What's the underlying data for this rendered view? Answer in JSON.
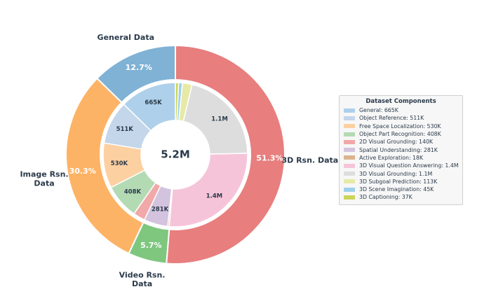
{
  "chart_data": {
    "type": "pie",
    "center_label": "5.2M",
    "outer": [
      {
        "label": "General Data",
        "pct_label": "12.7%",
        "value": 12.7,
        "color": "#7fb2d5"
      },
      {
        "label": "Image Rsn. Data",
        "pct_label": "30.3%",
        "value": 30.3,
        "color": "#fdb366"
      },
      {
        "label": "Video Rsn. Data",
        "pct_label": "5.7%",
        "value": 5.7,
        "color": "#7fc67f"
      },
      {
        "label": "3D Rsn. Data",
        "pct_label": "51.3%",
        "value": 51.3,
        "color": "#e87e7e"
      }
    ],
    "inner": [
      {
        "name": "General",
        "value": 665,
        "value_label": "665K",
        "show_label": true,
        "color": "#aed0ea"
      },
      {
        "name": "Object Reference",
        "value": 511,
        "value_label": "511K",
        "show_label": true,
        "color": "#c4d6ea"
      },
      {
        "name": "Free Space Localization",
        "value": 530,
        "value_label": "530K",
        "show_label": true,
        "color": "#fdd0a2"
      },
      {
        "name": "Object Part Recognition",
        "value": 408,
        "value_label": "408K",
        "show_label": true,
        "color": "#b4dab4"
      },
      {
        "name": "2D Visual Grounding",
        "value": 140,
        "value_label": "140K",
        "show_label": false,
        "color": "#f1a8a8"
      },
      {
        "name": "Spatial Understanding",
        "value": 281,
        "value_label": "281K",
        "show_label": true,
        "color": "#d3c3de"
      },
      {
        "name": "Active Exploration",
        "value": 18,
        "value_label": "18K",
        "show_label": false,
        "color": "#d9b48f"
      },
      {
        "name": "3D Visual Question Answering",
        "value": 1400,
        "value_label": "1.4M",
        "show_label": true,
        "color": "#f6c4d9"
      },
      {
        "name": "3D Visual Grounding",
        "value": 1100,
        "value_label": "1.1M",
        "show_label": true,
        "color": "#dddddd"
      },
      {
        "name": "3D Subgoal Prediction",
        "value": 113,
        "value_label": "113K",
        "show_label": false,
        "color": "#e6eaa6"
      },
      {
        "name": "3D Scene Imagination",
        "value": 45,
        "value_label": "45K",
        "show_label": false,
        "color": "#9dd1ea"
      },
      {
        "name": "3D Captioning",
        "value": 37,
        "value_label": "37K",
        "show_label": false,
        "color": "#cdd45a"
      }
    ],
    "legend": {
      "title": "Dataset Components",
      "placement": "right",
      "entries": [
        "General: 665K",
        "Object Reference: 511K",
        "Free Space Localization: 530K",
        "Object Part Recognition: 408K",
        "2D Visual Grounding: 140K",
        "Spatial Understanding: 281K",
        "Active Exploration: 18K",
        "3D Visual Question Answering: 1.4M",
        "3D Visual Grounding: 1.1M",
        "3D Subgoal Prediction: 113K",
        "3D Scene Imagination: 45K",
        "3D Captioning: 37K"
      ]
    }
  }
}
